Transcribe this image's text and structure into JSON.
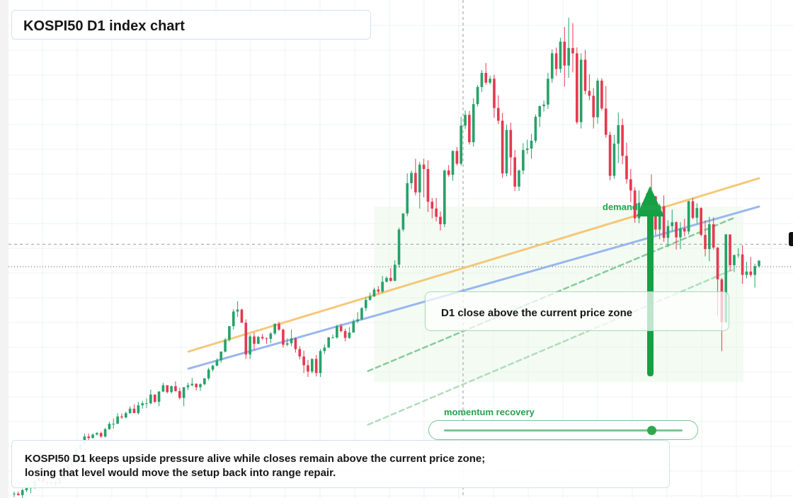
{
  "title": "KOSPI50 D1 index chart",
  "callout": {
    "text": "D1 close above the current price zone"
  },
  "summary": {
    "line1": "KOSPI50 D1 keeps upside pressure alive while closes remain above the current price zone;",
    "line2": "losing that level would move the setup back into range repair."
  },
  "zone_label": "demand zone",
  "momentum": {
    "label": "momentum recovery",
    "level": 0.87
  },
  "colors": {
    "up": "#26a269",
    "down": "#e63950",
    "orange_line": "#f5c36b",
    "blue_line": "#8fb0ee",
    "accent_green": "#27a24c"
  },
  "chart_data": {
    "type": "candlestick",
    "title": "KOSPI50 D1 index chart",
    "price_range": [
      0,
      100
    ],
    "current_price": 47.4,
    "crosshair_price": 52.0,
    "candles": [
      [
        0.9,
        1.3,
        0.2,
        0.9
      ],
      [
        0.9,
        1.3,
        0.5,
        0.6
      ],
      [
        0.6,
        1.9,
        0.0,
        1.6
      ],
      [
        1.6,
        3.1,
        1.2,
        2.0
      ],
      [
        2.0,
        2.4,
        1.0,
        2.2
      ],
      [
        2.2,
        3.6,
        1.9,
        3.5
      ],
      [
        3.5,
        4.3,
        3.3,
        4.1
      ],
      [
        4.1,
        5.3,
        3.1,
        3.3
      ],
      [
        3.3,
        3.7,
        2.6,
        3.0
      ],
      [
        3.0,
        3.7,
        2.6,
        3.2
      ],
      [
        3.2,
        3.6,
        2.4,
        2.9
      ],
      [
        2.9,
        4.2,
        2.6,
        4.1
      ],
      [
        4.1,
        5.8,
        3.8,
        5.2
      ],
      [
        5.2,
        7.2,
        5.1,
        6.4
      ],
      [
        6.4,
        7.5,
        6.3,
        7.1
      ],
      [
        7.1,
        9.9,
        6.9,
        9.9
      ],
      [
        9.9,
        11.2,
        9.2,
        11.0
      ],
      [
        11.0,
        13.2,
        10.8,
        12.6
      ],
      [
        12.6,
        13.2,
        11.8,
        12.3
      ],
      [
        12.3,
        13.2,
        12.2,
        13.0
      ],
      [
        13.0,
        13.5,
        12.8,
        13.3
      ],
      [
        13.3,
        13.6,
        12.3,
        12.6
      ],
      [
        12.6,
        14.4,
        12.4,
        14.1
      ],
      [
        14.1,
        15.6,
        14.0,
        15.2
      ],
      [
        15.2,
        16.3,
        14.2,
        15.2
      ],
      [
        15.2,
        17.4,
        15.2,
        16.7
      ],
      [
        16.7,
        17.3,
        16.2,
        16.5
      ],
      [
        16.5,
        17.7,
        16.3,
        17.4
      ],
      [
        17.4,
        18.8,
        17.2,
        18.3
      ],
      [
        18.3,
        19.2,
        17.4,
        17.4
      ],
      [
        17.4,
        19.7,
        17.1,
        19.0
      ],
      [
        19.0,
        19.9,
        18.3,
        19.4
      ],
      [
        19.4,
        20.4,
        18.4,
        19.4
      ],
      [
        19.4,
        22.2,
        19.2,
        21.2
      ],
      [
        21.2,
        21.2,
        19.5,
        19.7
      ],
      [
        19.7,
        21.9,
        18.8,
        21.8
      ],
      [
        21.8,
        23.6,
        21.7,
        23.1
      ],
      [
        23.1,
        23.1,
        21.4,
        21.7
      ],
      [
        21.7,
        23.1,
        21.4,
        22.9
      ],
      [
        22.9,
        23.9,
        21.8,
        21.9
      ],
      [
        21.9,
        22.6,
        20.2,
        20.5
      ],
      [
        20.5,
        22.7,
        18.8,
        22.7
      ],
      [
        22.7,
        23.6,
        22.1,
        23.1
      ],
      [
        23.1,
        24.6,
        22.9,
        23.4
      ],
      [
        23.4,
        23.5,
        22.0,
        22.7
      ],
      [
        22.7,
        23.5,
        21.9,
        23.3
      ],
      [
        23.3,
        24.6,
        23.1,
        24.5
      ],
      [
        24.5,
        26.7,
        24.1,
        26.3
      ],
      [
        26.3,
        27.3,
        25.9,
        27.1
      ],
      [
        27.1,
        28.6,
        27.0,
        28.2
      ],
      [
        28.2,
        30.0,
        27.7,
        30.0
      ],
      [
        30.0,
        32.8,
        29.8,
        32.4
      ],
      [
        32.4,
        35.2,
        32.0,
        35.2
      ],
      [
        35.2,
        38.7,
        34.5,
        38.2
      ],
      [
        38.2,
        40.3,
        37.1,
        38.6
      ],
      [
        38.6,
        38.8,
        35.9,
        35.9
      ],
      [
        35.9,
        36.6,
        28.5,
        29.4
      ],
      [
        29.4,
        33.5,
        28.5,
        33.1
      ],
      [
        33.1,
        33.9,
        30.3,
        31.6
      ],
      [
        31.6,
        33.2,
        31.5,
        33.0
      ],
      [
        33.0,
        33.6,
        32.4,
        32.7
      ],
      [
        32.7,
        32.9,
        31.6,
        32.6
      ],
      [
        32.6,
        34.0,
        31.7,
        33.7
      ],
      [
        33.7,
        35.7,
        33.4,
        35.7
      ],
      [
        35.7,
        36.1,
        34.2,
        34.5
      ],
      [
        34.5,
        34.7,
        30.8,
        31.4
      ],
      [
        31.4,
        32.7,
        31.1,
        31.7
      ],
      [
        31.7,
        34.5,
        31.1,
        32.7
      ],
      [
        32.7,
        32.9,
        29.8,
        30.5
      ],
      [
        30.5,
        31.1,
        28.4,
        29.0
      ],
      [
        29.0,
        30.2,
        25.6,
        27.2
      ],
      [
        27.2,
        28.3,
        24.8,
        25.9
      ],
      [
        25.9,
        28.6,
        25.5,
        28.5
      ],
      [
        28.5,
        29.3,
        24.9,
        25.6
      ],
      [
        25.6,
        30.5,
        24.8,
        30.1
      ],
      [
        30.1,
        31.5,
        29.5,
        30.8
      ],
      [
        30.8,
        33.0,
        30.8,
        32.9
      ],
      [
        32.9,
        33.5,
        32.7,
        32.9
      ],
      [
        32.9,
        35.5,
        32.6,
        35.2
      ],
      [
        35.2,
        35.7,
        33.9,
        34.2
      ],
      [
        34.2,
        34.7,
        32.1,
        32.8
      ],
      [
        32.8,
        35.0,
        32.6,
        33.9
      ],
      [
        33.9,
        36.6,
        33.9,
        36.2
      ],
      [
        36.2,
        38.1,
        35.8,
        36.6
      ],
      [
        36.6,
        39.1,
        36.5,
        38.9
      ],
      [
        38.9,
        41.1,
        38.3,
        40.6
      ],
      [
        40.6,
        42.1,
        40.4,
        41.3
      ],
      [
        41.3,
        43.1,
        41.2,
        42.7
      ],
      [
        42.7,
        43.4,
        41.9,
        42.3
      ],
      [
        42.3,
        45.5,
        42.0,
        44.3
      ],
      [
        44.3,
        45.4,
        44.2,
        45.1
      ],
      [
        45.1,
        47.1,
        44.3,
        44.5
      ],
      [
        44.5,
        48.7,
        44.4,
        47.8
      ],
      [
        47.8,
        55.4,
        47.2,
        55.0
      ],
      [
        55.0,
        58.3,
        54.6,
        58.3
      ],
      [
        58.3,
        66.5,
        57.7,
        64.5
      ],
      [
        64.5,
        67.1,
        63.3,
        66.6
      ],
      [
        66.6,
        69.5,
        62.0,
        62.6
      ],
      [
        62.6,
        68.9,
        59.3,
        68.3
      ],
      [
        68.3,
        69.5,
        61.6,
        67.4
      ],
      [
        67.4,
        69.2,
        58.6,
        60.7
      ],
      [
        60.7,
        61.5,
        57.3,
        59.3
      ],
      [
        59.3,
        61.5,
        56.7,
        57.6
      ],
      [
        57.6,
        58.7,
        54.8,
        56.1
      ],
      [
        56.1,
        67.3,
        55.5,
        67.1
      ],
      [
        67.1,
        68.2,
        65.8,
        66.2
      ],
      [
        66.2,
        71.2,
        65.0,
        71.1
      ],
      [
        71.1,
        71.9,
        68.1,
        68.5
      ],
      [
        68.5,
        78.1,
        68.1,
        76.3
      ],
      [
        76.3,
        79.4,
        75.6,
        78.5
      ],
      [
        78.5,
        79.3,
        72.4,
        72.9
      ],
      [
        72.9,
        81.9,
        72.0,
        80.7
      ],
      [
        80.7,
        84.6,
        80.2,
        84.2
      ],
      [
        84.2,
        87.7,
        83.2,
        87.1
      ],
      [
        87.1,
        89.1,
        84.7,
        85.1
      ],
      [
        85.1,
        86.5,
        84.7,
        85.9
      ],
      [
        85.9,
        86.7,
        77.9,
        79.9
      ],
      [
        79.9,
        82.5,
        76.6,
        77.3
      ],
      [
        77.3,
        78.9,
        65.6,
        66.5
      ],
      [
        66.5,
        76.5,
        65.9,
        75.4
      ],
      [
        75.4,
        76.9,
        66.1,
        69.8
      ],
      [
        69.8,
        71.3,
        62.9,
        63.8
      ],
      [
        63.8,
        67.3,
        62.9,
        67.1
      ],
      [
        67.1,
        72.7,
        66.3,
        71.3
      ],
      [
        71.3,
        73.4,
        70.5,
        71.6
      ],
      [
        71.6,
        74.6,
        69.5,
        73.2
      ],
      [
        73.2,
        78.6,
        72.7,
        78.1
      ],
      [
        78.1,
        80.4,
        76.0,
        80.3
      ],
      [
        80.3,
        81.4,
        79.2,
        80.6
      ],
      [
        80.6,
        87.1,
        79.7,
        85.9
      ],
      [
        85.9,
        91.9,
        85.1,
        91.1
      ],
      [
        91.1,
        92.3,
        86.5,
        87.9
      ],
      [
        87.9,
        94.3,
        87.1,
        93.5
      ],
      [
        93.5,
        96.5,
        84.3,
        88.6
      ],
      [
        88.6,
        98.4,
        86.1,
        92.2
      ],
      [
        92.2,
        97.3,
        87.2,
        91.1
      ],
      [
        91.1,
        92.3,
        76.6,
        77.0
      ],
      [
        77.0,
        91.1,
        75.7,
        89.8
      ],
      [
        89.8,
        91.8,
        82.7,
        83.4
      ],
      [
        83.4,
        86.8,
        81.5,
        82.4
      ],
      [
        82.4,
        84.0,
        75.7,
        78.0
      ],
      [
        78.0,
        86.0,
        76.7,
        85.5
      ],
      [
        85.5,
        86.0,
        79.4,
        79.8
      ],
      [
        79.8,
        84.4,
        73.8,
        74.4
      ],
      [
        74.4,
        75.0,
        65.1,
        66.0
      ],
      [
        66.0,
        74.4,
        65.4,
        72.6
      ],
      [
        72.6,
        79.0,
        68.6,
        76.4
      ],
      [
        76.4,
        77.7,
        68.4,
        70.1
      ],
      [
        70.1,
        72.8,
        64.4,
        65.3
      ],
      [
        65.3,
        67.4,
        60.6,
        63.0
      ],
      [
        63.0,
        63.7,
        56.4,
        57.3
      ],
      [
        57.3,
        63.0,
        56.3,
        60.5
      ],
      [
        60.5,
        60.6,
        59.3,
        59.9
      ],
      [
        59.9,
        62.6,
        59.0,
        62.4
      ],
      [
        62.4,
        66.3,
        61.7,
        61.8
      ],
      [
        61.8,
        61.9,
        53.9,
        55.0
      ],
      [
        55.0,
        60.3,
        53.0,
        59.8
      ],
      [
        59.8,
        62.0,
        52.5,
        53.3
      ],
      [
        53.3,
        56.9,
        51.4,
        55.7
      ],
      [
        55.7,
        59.1,
        54.7,
        56.5
      ],
      [
        56.5,
        56.7,
        50.9,
        53.4
      ],
      [
        53.4,
        56.5,
        51.0,
        55.2
      ],
      [
        55.2,
        57.2,
        53.6,
        54.6
      ],
      [
        54.6,
        60.9,
        54.0,
        60.8
      ],
      [
        60.8,
        61.5,
        57.1,
        57.4
      ],
      [
        57.4,
        60.4,
        56.3,
        59.4
      ],
      [
        59.4,
        59.6,
        53.6,
        53.9
      ],
      [
        53.9,
        56.9,
        49.5,
        51.0
      ],
      [
        51.0,
        57.6,
        48.5,
        56.1
      ],
      [
        56.1,
        57.5,
        50.9,
        51.3
      ],
      [
        51.3,
        51.4,
        37.4,
        44.8
      ],
      [
        44.8,
        45.1,
        30.1,
        36.0
      ],
      [
        36.0,
        54.1,
        35.9,
        54.0
      ],
      [
        54.0,
        54.0,
        46.5,
        47.7
      ],
      [
        47.7,
        49.8,
        46.3,
        49.8
      ],
      [
        49.8,
        51.2,
        49.2,
        49.9
      ],
      [
        49.9,
        51.8,
        43.9,
        45.7
      ],
      [
        45.7,
        48.4,
        45.0,
        46.4
      ],
      [
        46.4,
        49.4,
        45.3,
        45.7
      ],
      [
        45.7,
        48.0,
        43.1,
        47.5
      ],
      [
        47.5,
        48.8,
        47.2,
        48.6
      ]
    ],
    "lines": [
      {
        "name": "",
        "color": "#f5c36b",
        "points": [
          [
            0.234,
            30.0
          ],
          [
            1.0,
            65.5
          ]
        ]
      },
      {
        "name": "",
        "color": "#8fb0ee",
        "points": [
          [
            0.234,
            26.5
          ],
          [
            1.0,
            59.7
          ]
        ]
      },
      {
        "name": "",
        "color": "#7cc693",
        "dashed": true,
        "points": [
          [
            0.475,
            26.0
          ],
          [
            0.968,
            57.5
          ]
        ]
      },
      {
        "name": "",
        "color": "#a9dab6",
        "dashed": true,
        "points": [
          [
            0.475,
            15.0
          ],
          [
            0.968,
            47.0
          ]
        ]
      }
    ]
  }
}
